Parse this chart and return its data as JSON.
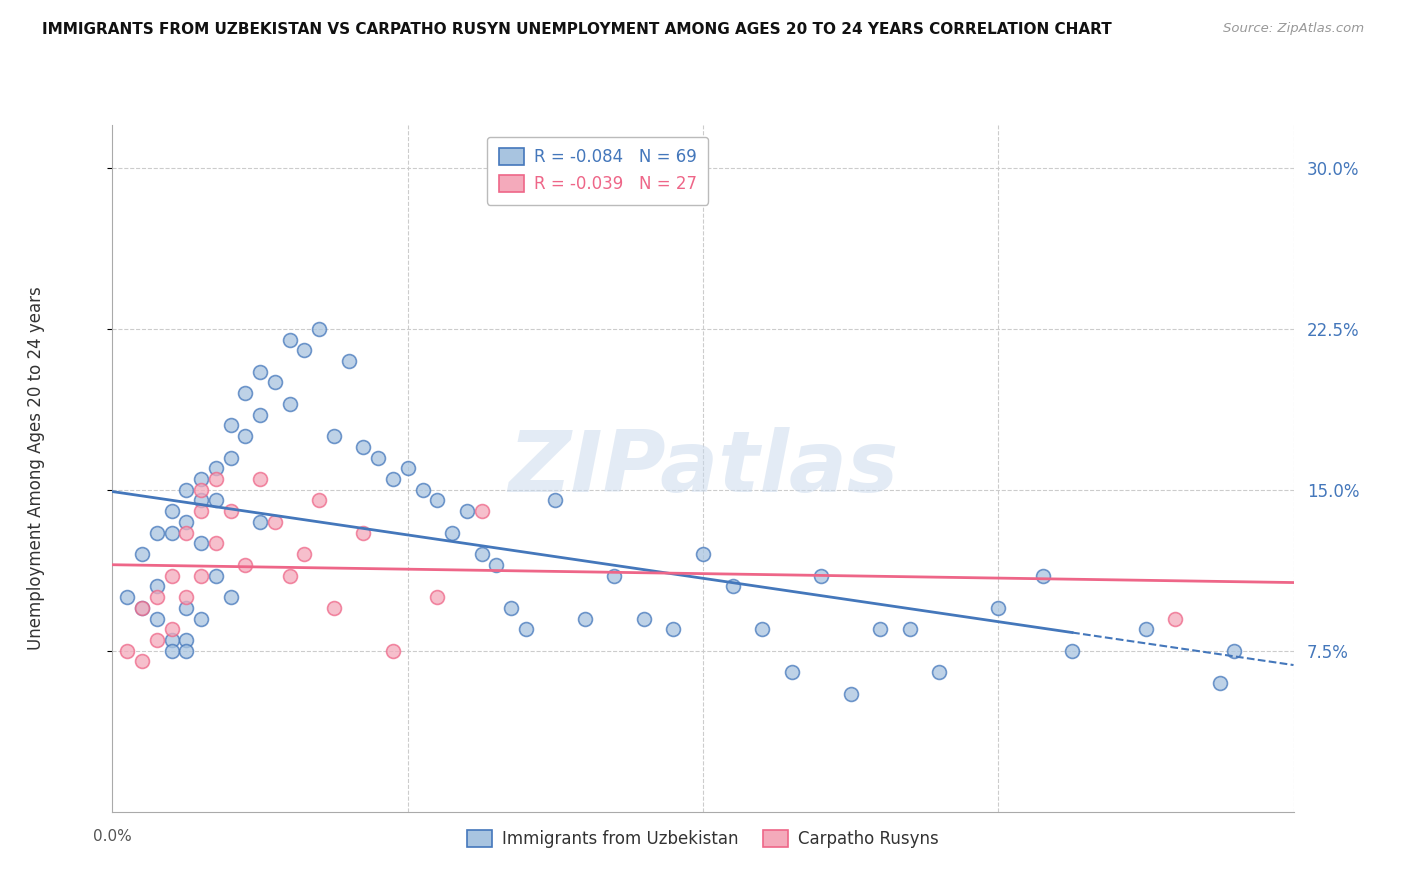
{
  "title": "IMMIGRANTS FROM UZBEKISTAN VS CARPATHO RUSYN UNEMPLOYMENT AMONG AGES 20 TO 24 YEARS CORRELATION CHART",
  "source": "Source: ZipAtlas.com",
  "ylabel": "Unemployment Among Ages 20 to 24 years",
  "right_yticks": [
    "30.0%",
    "22.5%",
    "15.0%",
    "7.5%"
  ],
  "right_ytick_vals": [
    0.3,
    0.225,
    0.15,
    0.075
  ],
  "legend1_r": "R = -0.084",
  "legend1_n": "N = 69",
  "legend2_r": "R = -0.039",
  "legend2_n": "N = 27",
  "legend_label_blue": "Immigrants from Uzbekistan",
  "legend_label_pink": "Carpatho Rusyns",
  "blue_color": "#A8C4E0",
  "pink_color": "#F4AABB",
  "line_blue": "#4477BB",
  "line_pink": "#EE6688",
  "watermark": "ZIPatlas",
  "xlim": [
    0.0,
    0.08
  ],
  "ylim": [
    0.0,
    0.32
  ],
  "blue_scatter_x": [
    0.001,
    0.002,
    0.002,
    0.003,
    0.003,
    0.003,
    0.004,
    0.004,
    0.004,
    0.004,
    0.005,
    0.005,
    0.005,
    0.005,
    0.005,
    0.006,
    0.006,
    0.006,
    0.006,
    0.007,
    0.007,
    0.007,
    0.008,
    0.008,
    0.008,
    0.009,
    0.009,
    0.01,
    0.01,
    0.01,
    0.011,
    0.012,
    0.012,
    0.013,
    0.014,
    0.015,
    0.016,
    0.017,
    0.018,
    0.019,
    0.02,
    0.021,
    0.022,
    0.023,
    0.024,
    0.025,
    0.026,
    0.027,
    0.028,
    0.03,
    0.032,
    0.034,
    0.036,
    0.038,
    0.04,
    0.042,
    0.044,
    0.046,
    0.048,
    0.05,
    0.052,
    0.054,
    0.056,
    0.06,
    0.063,
    0.065,
    0.07,
    0.075,
    0.076
  ],
  "blue_scatter_y": [
    0.1,
    0.12,
    0.095,
    0.13,
    0.105,
    0.09,
    0.14,
    0.13,
    0.08,
    0.075,
    0.15,
    0.135,
    0.095,
    0.08,
    0.075,
    0.155,
    0.145,
    0.125,
    0.09,
    0.16,
    0.145,
    0.11,
    0.18,
    0.165,
    0.1,
    0.195,
    0.175,
    0.205,
    0.185,
    0.135,
    0.2,
    0.22,
    0.19,
    0.215,
    0.225,
    0.175,
    0.21,
    0.17,
    0.165,
    0.155,
    0.16,
    0.15,
    0.145,
    0.13,
    0.14,
    0.12,
    0.115,
    0.095,
    0.085,
    0.145,
    0.09,
    0.11,
    0.09,
    0.085,
    0.12,
    0.105,
    0.085,
    0.065,
    0.11,
    0.055,
    0.085,
    0.085,
    0.065,
    0.095,
    0.11,
    0.075,
    0.085,
    0.06,
    0.075
  ],
  "pink_scatter_x": [
    0.001,
    0.002,
    0.002,
    0.003,
    0.003,
    0.004,
    0.004,
    0.005,
    0.005,
    0.006,
    0.006,
    0.006,
    0.007,
    0.007,
    0.008,
    0.009,
    0.01,
    0.011,
    0.012,
    0.013,
    0.014,
    0.015,
    0.017,
    0.019,
    0.022,
    0.025,
    0.072
  ],
  "pink_scatter_y": [
    0.075,
    0.095,
    0.07,
    0.1,
    0.08,
    0.11,
    0.085,
    0.13,
    0.1,
    0.15,
    0.14,
    0.11,
    0.155,
    0.125,
    0.14,
    0.115,
    0.155,
    0.135,
    0.11,
    0.12,
    0.145,
    0.095,
    0.13,
    0.075,
    0.1,
    0.14,
    0.09
  ]
}
